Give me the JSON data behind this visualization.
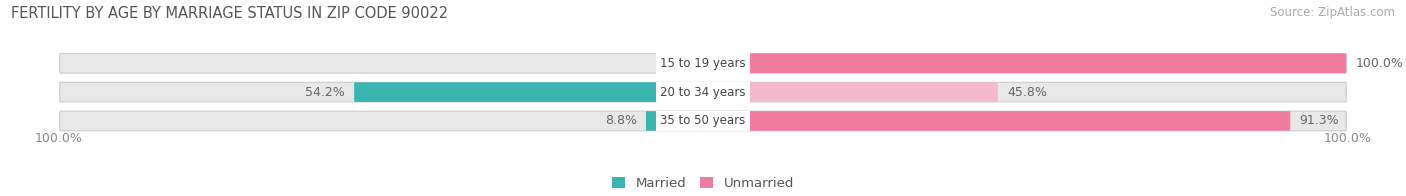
{
  "title": "FERTILITY BY AGE BY MARRIAGE STATUS IN ZIP CODE 90022",
  "source": "Source: ZipAtlas.com",
  "categories": [
    "15 to 19 years",
    "20 to 34 years",
    "35 to 50 years"
  ],
  "married": [
    0.0,
    54.2,
    8.8
  ],
  "unmarried": [
    100.0,
    45.8,
    91.3
  ],
  "married_color": "#3ab5b0",
  "unmarried_color": "#f07ca0",
  "unmarried_light_color": "#f5b8cc",
  "bar_bg_color": "#e8e8e8",
  "bar_bg_outer_color": "#d8d8d8",
  "title_fontsize": 10.5,
  "label_fontsize": 9,
  "source_fontsize": 8.5,
  "legend_fontsize": 9.5,
  "axis_label_left": "100.0%",
  "axis_label_right": "100.0%",
  "background_color": "#ffffff"
}
